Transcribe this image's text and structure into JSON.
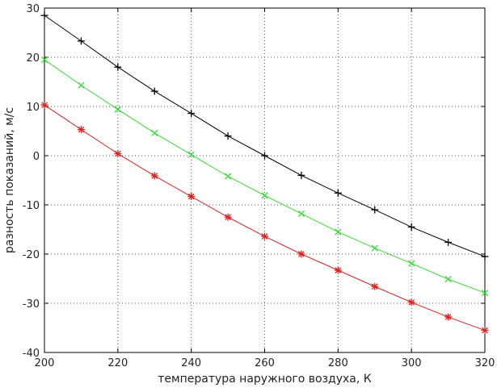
{
  "chart_data": {
    "type": "line",
    "xlabel": "температура наружного воздуха, К",
    "ylabel": "разность показаний, м/с",
    "xlim": [
      200,
      320
    ],
    "ylim": [
      -40,
      30
    ],
    "xticks": [
      200,
      220,
      240,
      260,
      280,
      300,
      320
    ],
    "yticks": [
      -40,
      -30,
      -20,
      -10,
      0,
      10,
      20,
      30
    ],
    "grid": true,
    "x": [
      200,
      210,
      220,
      230,
      240,
      250,
      260,
      270,
      280,
      290,
      300,
      310,
      320
    ],
    "series": [
      {
        "color": "#000000",
        "marker": "plus",
        "values": [
          28.5,
          23.3,
          18.0,
          13.1,
          8.6,
          4.0,
          0.0,
          -4.0,
          -7.6,
          -11.0,
          -14.5,
          -17.6,
          -20.5
        ]
      },
      {
        "color": "#33dd33",
        "marker": "x",
        "values": [
          19.5,
          14.3,
          9.4,
          4.6,
          0.2,
          -4.2,
          -8.1,
          -11.8,
          -15.5,
          -18.8,
          -21.9,
          -25.1,
          -27.9
        ]
      },
      {
        "color": "#dd2222",
        "marker": "star",
        "values": [
          10.3,
          5.3,
          0.4,
          -4.1,
          -8.3,
          -12.5,
          -16.4,
          -20.0,
          -23.3,
          -26.6,
          -29.8,
          -32.8,
          -35.5
        ]
      }
    ]
  }
}
